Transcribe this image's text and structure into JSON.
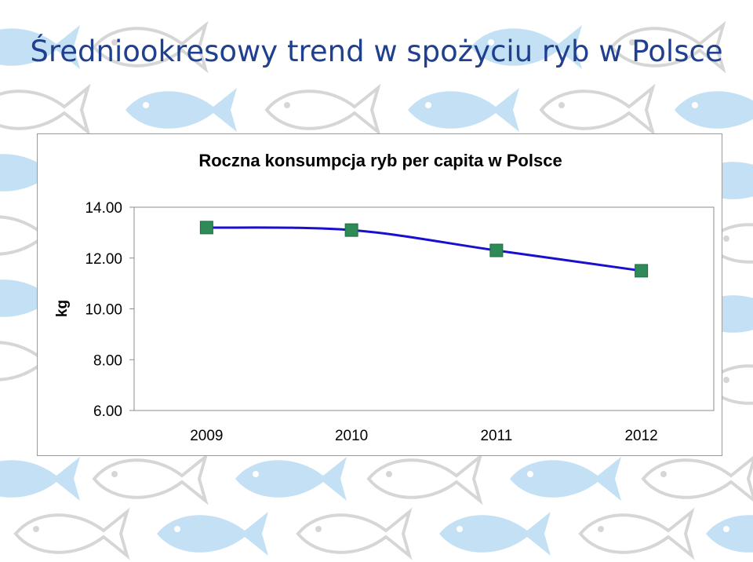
{
  "slide": {
    "title": "Średniookresowy trend w spożyciu ryb w Polsce",
    "background_pattern": "fish-pattern"
  },
  "colors": {
    "title": "#1f3f8f",
    "fish_light": "#c4e0f4",
    "fish_outline": "#d6d6d6",
    "line": "#1a0fd0",
    "marker": "#2e8b57"
  },
  "chart_data": {
    "type": "line",
    "title": "Roczna konsumpcja ryb per capita w Polsce",
    "xlabel": "",
    "ylabel": "kg",
    "categories": [
      "2009",
      "2010",
      "2011",
      "2012"
    ],
    "yticks": [
      "14.00",
      "12.00",
      "10.00",
      "8.00",
      "6.00"
    ],
    "ylim": [
      6,
      14
    ],
    "grid": false,
    "legend": "none",
    "series": [
      {
        "values": [
          13.2,
          13.1,
          12.3,
          11.5
        ],
        "marker": "square"
      }
    ]
  }
}
